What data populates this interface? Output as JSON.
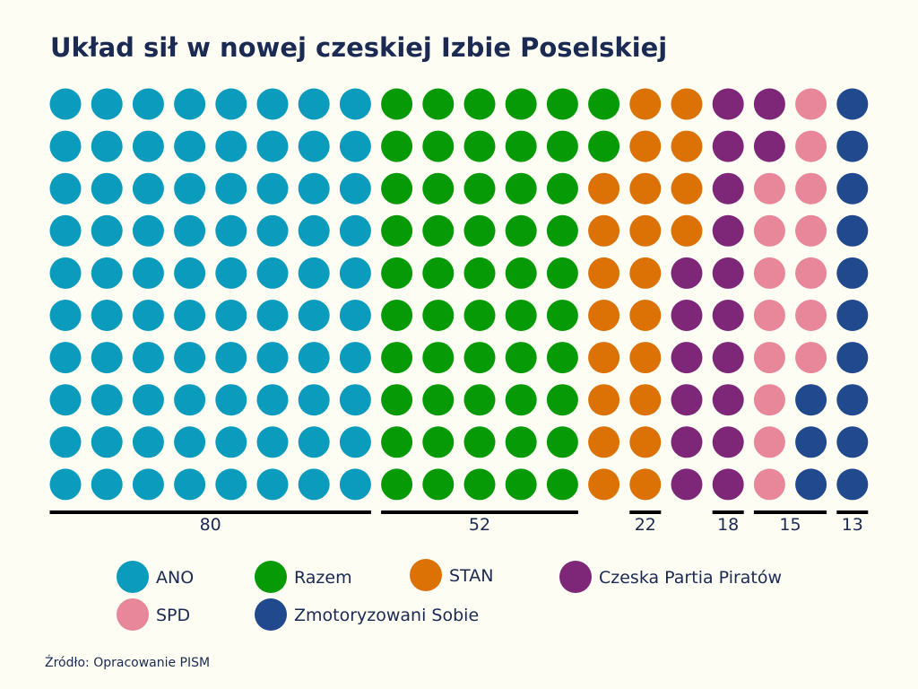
{
  "chart_data": {
    "type": "waffle",
    "title": "Układ sił w nowej czeskiej Izbie Poselskiej",
    "source": "Źródło: Opracowanie PISM",
    "rows": 10,
    "categories": [
      "ANO",
      "Razem",
      "STAN",
      "Czeska Partia Piratów",
      "SPD",
      "Zmotoryzowani Sobie"
    ],
    "series": [
      {
        "name": "ANO",
        "value": 80,
        "value_label": "80",
        "color": "#0b9bbc"
      },
      {
        "name": "Razem",
        "value": 52,
        "value_label": "52",
        "color": "#069b06"
      },
      {
        "name": "STAN",
        "value": 22,
        "value_label": "22",
        "color": "#dc7205"
      },
      {
        "name": "Czeska Partia Piratów",
        "value": 18,
        "value_label": "18",
        "color": "#7e2779"
      },
      {
        "name": "SPD",
        "value": 15,
        "value_label": "15",
        "color": "#e8879a"
      },
      {
        "name": "Zmotoryzowani Sobie",
        "value": 13,
        "value_label": "13",
        "color": "#214a8e"
      }
    ]
  }
}
